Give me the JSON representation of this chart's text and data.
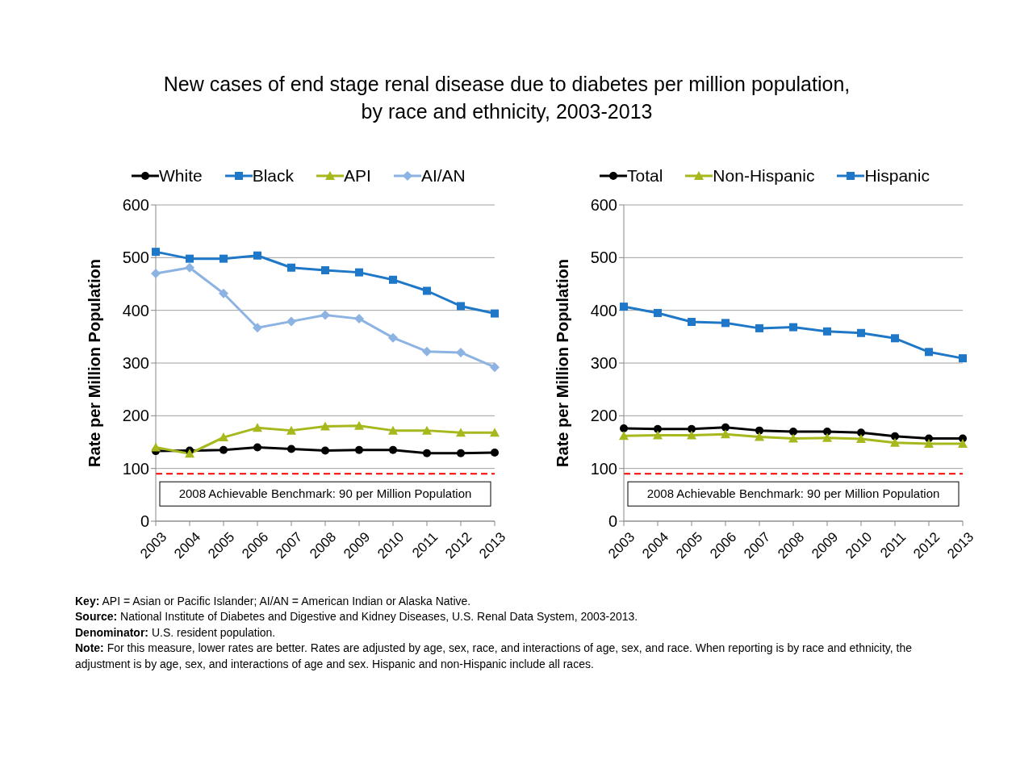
{
  "chart_data": [
    {
      "type": "line",
      "title": "New cases of end stage renal disease due to diabetes per million population,\nby race and ethnicity, 2003-2013",
      "ylabel": "Rate per Million Population",
      "categories": [
        "2003",
        "2004",
        "2005",
        "2006",
        "2007",
        "2008",
        "2009",
        "2010",
        "2011",
        "2012",
        "2013"
      ],
      "series": [
        {
          "name": "White",
          "color": "#000000",
          "marker": "circle",
          "values": [
            133,
            134,
            135,
            140,
            137,
            134,
            135,
            135,
            129,
            129,
            130
          ]
        },
        {
          "name": "Black",
          "color": "#1f77c8",
          "marker": "square",
          "values": [
            511,
            498,
            498,
            504,
            481,
            476,
            472,
            458,
            437,
            408,
            394
          ]
        },
        {
          "name": "API",
          "color": "#a6b81c",
          "marker": "triangle",
          "values": [
            140,
            128,
            159,
            177,
            172,
            180,
            181,
            172,
            172,
            168,
            168
          ]
        },
        {
          "name": "AI/AN",
          "color": "#8db3e2",
          "marker": "diamond",
          "values": [
            470,
            481,
            432,
            367,
            379,
            391,
            384,
            348,
            322,
            320,
            292
          ]
        }
      ],
      "ylim": [
        0,
        600
      ],
      "yticks": [
        0,
        100,
        200,
        300,
        400,
        500,
        600
      ],
      "grid": "y",
      "legend": "top",
      "line_style": "solid",
      "ref_lines": [
        {
          "axis": "y",
          "value": 90,
          "label": "2008 Achievable Benchmark: 90 per Million Population",
          "color": "#ff0000",
          "line_style": "dashed"
        }
      ],
      "annotations": [
        "Key: API = Asian or Pacific Islander; AI/AN = American Indian or Alaska Native.",
        "Source: National Institute of Diabetes and Digestive and Kidney Diseases, U.S. Renal Data System, 2003-2013.",
        "Denominator: U.S. resident population.",
        "Note: For this measure, lower rates are better. Rates are adjusted by age, sex, race, and interactions of age, sex, and race. When reporting is by race and ethnicity, the adjustment is by age, sex, and interactions of age and sex. Hispanic and non-Hispanic include all races."
      ]
    },
    {
      "type": "line",
      "ylabel": "Rate per Million Population",
      "categories": [
        "2003",
        "2004",
        "2005",
        "2006",
        "2007",
        "2008",
        "2009",
        "2010",
        "2011",
        "2012",
        "2013"
      ],
      "series": [
        {
          "name": "Total",
          "color": "#000000",
          "marker": "circle",
          "values": [
            176,
            175,
            175,
            178,
            172,
            170,
            170,
            168,
            161,
            157,
            157
          ]
        },
        {
          "name": "Non-Hispanic",
          "color": "#a6b81c",
          "marker": "triangle",
          "values": [
            162,
            163,
            163,
            165,
            160,
            157,
            158,
            156,
            149,
            147,
            147
          ]
        },
        {
          "name": "Hispanic",
          "color": "#1f77c8",
          "marker": "square",
          "values": [
            407,
            395,
            378,
            376,
            366,
            368,
            360,
            357,
            347,
            321,
            309
          ]
        }
      ],
      "ylim": [
        0,
        600
      ],
      "yticks": [
        0,
        100,
        200,
        300,
        400,
        500,
        600
      ],
      "grid": "y",
      "legend": "top",
      "line_style": "solid",
      "ref_lines": [
        {
          "axis": "y",
          "value": 90,
          "label": "2008 Achievable Benchmark: 90 per Million Population",
          "color": "#ff0000",
          "line_style": "dashed"
        }
      ]
    }
  ]
}
